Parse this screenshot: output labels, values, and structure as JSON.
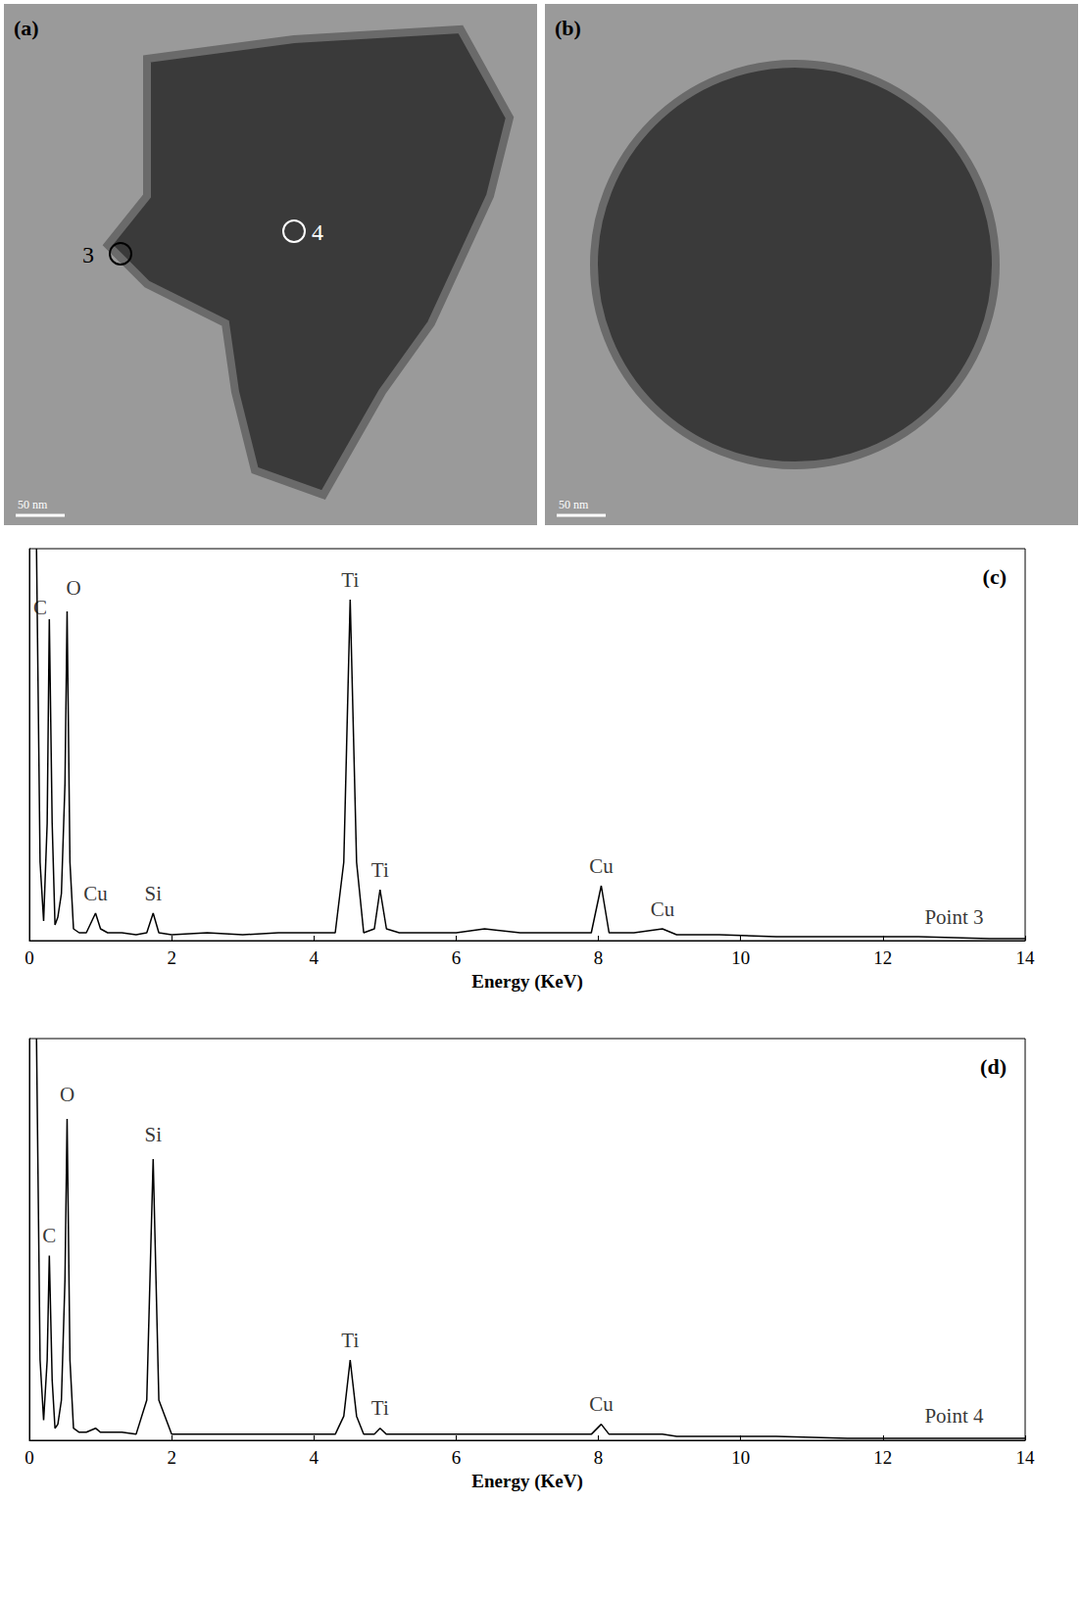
{
  "images": [
    {
      "label": "(a)",
      "scale_bar": "50 nm",
      "points": [
        "3",
        "4"
      ]
    },
    {
      "label": "(b)",
      "scale_bar": "50 nm"
    }
  ],
  "chart_data": [
    {
      "type": "line",
      "title": "(c)",
      "x_label": "Energy (KeV)",
      "color": "#000000",
      "xlim": [
        0,
        14
      ],
      "xticks": [
        0,
        2,
        4,
        6,
        8,
        10,
        12,
        14
      ],
      "ylim": [
        0,
        100
      ],
      "tick_labels": "x",
      "grid": false,
      "x": [
        0.1,
        0.15,
        0.2,
        0.25,
        0.28,
        0.32,
        0.36,
        0.4,
        0.45,
        0.5,
        0.53,
        0.57,
        0.62,
        0.7,
        0.8,
        0.93,
        1.0,
        1.1,
        1.3,
        1.5,
        1.65,
        1.74,
        1.82,
        2.0,
        2.5,
        3.0,
        3.5,
        4.0,
        4.3,
        4.42,
        4.51,
        4.6,
        4.7,
        4.85,
        4.93,
        5.02,
        5.2,
        5.6,
        6.0,
        6.4,
        6.9,
        7.5,
        7.9,
        8.04,
        8.15,
        8.5,
        8.9,
        9.1,
        9.7,
        10.5,
        11.5,
        12.5,
        13.5,
        14
      ],
      "values": [
        100,
        20,
        5,
        30,
        82,
        30,
        4,
        6,
        12,
        40,
        84,
        20,
        3,
        2,
        2,
        7,
        3,
        2,
        2,
        1.5,
        2,
        7,
        2,
        1.5,
        2,
        1.5,
        2,
        2,
        2,
        20,
        87,
        20,
        2,
        3,
        13,
        3,
        2,
        2,
        2,
        3,
        2,
        2,
        2,
        14,
        2,
        2,
        3,
        1.5,
        1.5,
        1,
        1,
        1,
        0.5,
        0.5
      ],
      "annotations": [
        {
          "text": "C",
          "x": 0.15,
          "y": 85
        },
        {
          "text": "O",
          "x": 0.62,
          "y": 90
        },
        {
          "text": "Ti",
          "x": 4.51,
          "y": 92
        },
        {
          "text": "Ti",
          "x": 4.93,
          "y": 18
        },
        {
          "text": "Cu",
          "x": 0.93,
          "y": 12
        },
        {
          "text": "Si",
          "x": 1.74,
          "y": 12
        },
        {
          "text": "Cu",
          "x": 8.04,
          "y": 19
        },
        {
          "text": "Cu",
          "x": 8.9,
          "y": 8
        },
        {
          "text": "Point 3",
          "x": 13.0,
          "y": 6
        }
      ]
    },
    {
      "type": "line",
      "title": "(d)",
      "x_label": "Energy (KeV)",
      "color": "#000000",
      "xlim": [
        0,
        14
      ],
      "xticks": [
        0,
        2,
        4,
        6,
        8,
        10,
        12,
        14
      ],
      "ylim": [
        0,
        100
      ],
      "tick_labels": "x",
      "grid": false,
      "x": [
        0.1,
        0.15,
        0.2,
        0.25,
        0.28,
        0.32,
        0.36,
        0.4,
        0.45,
        0.5,
        0.53,
        0.57,
        0.62,
        0.7,
        0.8,
        0.93,
        1.0,
        1.1,
        1.3,
        1.5,
        1.65,
        1.74,
        1.82,
        2.0,
        2.5,
        3.0,
        3.5,
        4.0,
        4.3,
        4.42,
        4.51,
        4.6,
        4.7,
        4.85,
        4.93,
        5.02,
        5.2,
        5.6,
        6.0,
        6.4,
        6.9,
        7.5,
        7.9,
        8.04,
        8.15,
        8.5,
        8.9,
        9.1,
        9.7,
        10.5,
        11.5,
        12.5,
        13.5,
        14
      ],
      "values": [
        100,
        20,
        5,
        20,
        46,
        15,
        3,
        4,
        10,
        40,
        80,
        20,
        3,
        2,
        2,
        3,
        2,
        2,
        2,
        1.5,
        10,
        70,
        10,
        1.5,
        1.5,
        1.5,
        1.5,
        1.5,
        1.5,
        6,
        20,
        6,
        1.5,
        1.5,
        3,
        1.5,
        1.5,
        1.5,
        1.5,
        1.5,
        1.5,
        1.5,
        1.5,
        4,
        1.5,
        1.5,
        1.5,
        1,
        1,
        1,
        0.5,
        0.5,
        0.5,
        0.5
      ],
      "annotations": [
        {
          "text": "C",
          "x": 0.28,
          "y": 51
        },
        {
          "text": "O",
          "x": 0.53,
          "y": 86
        },
        {
          "text": "Si",
          "x": 1.74,
          "y": 76
        },
        {
          "text": "Ti",
          "x": 4.51,
          "y": 25
        },
        {
          "text": "Ti",
          "x": 4.93,
          "y": 8
        },
        {
          "text": "Cu",
          "x": 8.04,
          "y": 9
        },
        {
          "text": "Point 4",
          "x": 13.0,
          "y": 6
        }
      ]
    }
  ]
}
